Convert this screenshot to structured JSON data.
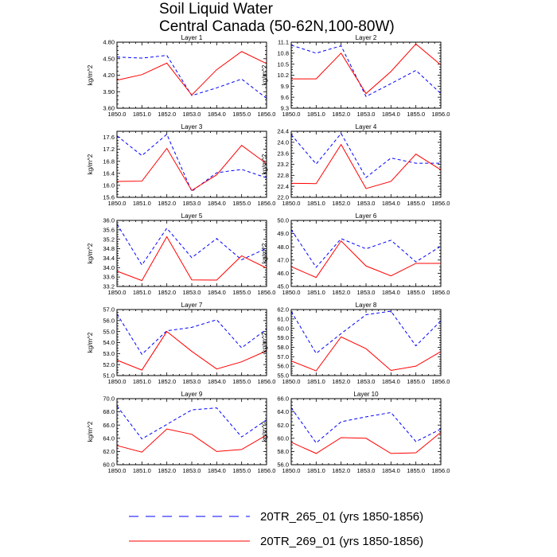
{
  "figure": {
    "title_line1": "Soil Liquid Water",
    "title_line2": "Central Canada (50-62N,100-80W)"
  },
  "chart_data": [
    {
      "type": "line",
      "title": "Layer 1",
      "xlabel": "",
      "ylabel": "kg/m^2",
      "x": [
        1850,
        1851,
        1852,
        1853,
        1854,
        1855,
        1856
      ],
      "xticklabels": [
        "1850.0",
        "1851.0",
        "1852.0",
        "1853.0",
        "1854.0",
        "1855.0",
        "1856.0"
      ],
      "ylim": [
        3.6,
        4.8
      ],
      "yticks": [
        3.6,
        3.9,
        4.2,
        4.5,
        4.8
      ],
      "yticklabels": [
        "3.60",
        "3.90",
        "4.20",
        "4.50",
        "4.80"
      ],
      "series": [
        {
          "name": "20TR_265_01 (yrs 1850-1856)",
          "color": "#0000ff",
          "style": "dashed",
          "values": [
            4.53,
            4.51,
            4.56,
            3.83,
            3.97,
            4.13,
            3.78
          ]
        },
        {
          "name": "20TR_269_01 (yrs 1850-1856)",
          "color": "#ff0000",
          "style": "solid",
          "values": [
            4.11,
            4.21,
            4.42,
            3.84,
            4.3,
            4.63,
            4.41
          ]
        }
      ]
    },
    {
      "type": "line",
      "title": "Layer 2",
      "xlabel": "",
      "ylabel": "kg/m^2",
      "x": [
        1850,
        1851,
        1852,
        1853,
        1854,
        1855,
        1856
      ],
      "xticklabels": [
        "1850.0",
        "1851.0",
        "1852.0",
        "1853.0",
        "1854.0",
        "1855.0",
        "1856.0"
      ],
      "ylim": [
        9.3,
        11.1
      ],
      "yticks": [
        9.3,
        9.6,
        9.9,
        10.2,
        10.5,
        10.8,
        11.1
      ],
      "yticklabels": [
        "9.3",
        "9.6",
        "9.9",
        "10.2",
        "10.5",
        "10.8",
        "11.1"
      ],
      "series": [
        {
          "name": "20TR_265_01 (yrs 1850-1856)",
          "color": "#0000ff",
          "style": "dashed",
          "values": [
            11.02,
            10.8,
            11.0,
            9.62,
            9.97,
            10.33,
            9.7
          ]
        },
        {
          "name": "20TR_269_01 (yrs 1850-1856)",
          "color": "#ff0000",
          "style": "solid",
          "values": [
            10.1,
            10.1,
            10.8,
            9.7,
            10.3,
            11.05,
            10.48
          ]
        }
      ]
    },
    {
      "type": "line",
      "title": "Layer 3",
      "xlabel": "",
      "ylabel": "kg/m^2",
      "x": [
        1850,
        1851,
        1852,
        1853,
        1854,
        1855,
        1856
      ],
      "xticklabels": [
        "1850.0",
        "1851.0",
        "1852.0",
        "1853.0",
        "1854.0",
        "1855.0",
        "1856.0"
      ],
      "ylim": [
        15.6,
        17.8
      ],
      "yticks": [
        15.6,
        16.0,
        16.4,
        16.8,
        17.2,
        17.6
      ],
      "yticklabels": [
        "15.6",
        "16.0",
        "16.4",
        "16.8",
        "17.2",
        "17.6"
      ],
      "series": [
        {
          "name": "20TR_265_01 (yrs 1850-1856)",
          "color": "#0000ff",
          "style": "dashed",
          "values": [
            17.65,
            16.99,
            17.7,
            15.8,
            16.42,
            16.53,
            16.25
          ]
        },
        {
          "name": "20TR_269_01 (yrs 1850-1856)",
          "color": "#ff0000",
          "style": "solid",
          "values": [
            16.13,
            16.14,
            17.23,
            15.83,
            16.35,
            17.33,
            16.72
          ]
        }
      ]
    },
    {
      "type": "line",
      "title": "Layer 4",
      "xlabel": "",
      "ylabel": "kg/m^2",
      "x": [
        1850,
        1851,
        1852,
        1853,
        1854,
        1855,
        1856
      ],
      "xticklabels": [
        "1850.0",
        "1851.0",
        "1852.0",
        "1853.0",
        "1854.0",
        "1855.0",
        "1856.0"
      ],
      "ylim": [
        22.0,
        24.4
      ],
      "yticks": [
        22.0,
        22.4,
        22.8,
        23.2,
        23.6,
        24.0,
        24.4
      ],
      "yticklabels": [
        "22.0",
        "22.4",
        "22.8",
        "23.2",
        "23.6",
        "24.0",
        "24.4"
      ],
      "series": [
        {
          "name": "20TR_265_01 (yrs 1850-1856)",
          "color": "#0000ff",
          "style": "dashed",
          "values": [
            24.28,
            23.21,
            24.32,
            22.72,
            23.43,
            23.24,
            23.24
          ]
        },
        {
          "name": "20TR_269_01 (yrs 1850-1856)",
          "color": "#ff0000",
          "style": "solid",
          "values": [
            22.51,
            22.5,
            23.92,
            22.32,
            22.58,
            23.57,
            23.0
          ]
        }
      ]
    },
    {
      "type": "line",
      "title": "Layer 5",
      "xlabel": "",
      "ylabel": "kg/m^2",
      "x": [
        1850,
        1851,
        1852,
        1853,
        1854,
        1855,
        1856
      ],
      "xticklabels": [
        "1850.0",
        "1851.0",
        "1852.0",
        "1853.0",
        "1854.0",
        "1855.0",
        "1856.0"
      ],
      "ylim": [
        33.2,
        36.0
      ],
      "yticks": [
        33.2,
        33.6,
        34.0,
        34.4,
        34.8,
        35.2,
        35.6,
        36.0
      ],
      "yticklabels": [
        "33.2",
        "33.6",
        "34.0",
        "34.4",
        "34.8",
        "35.2",
        "35.6",
        "36.0"
      ],
      "series": [
        {
          "name": "20TR_265_01 (yrs 1850-1856)",
          "color": "#0000ff",
          "style": "dashed",
          "values": [
            35.85,
            34.11,
            35.67,
            34.42,
            35.23,
            34.33,
            34.82
          ]
        },
        {
          "name": "20TR_269_01 (yrs 1850-1856)",
          "color": "#ff0000",
          "style": "solid",
          "values": [
            33.85,
            33.45,
            35.31,
            33.48,
            33.47,
            34.5,
            33.98
          ]
        }
      ]
    },
    {
      "type": "line",
      "title": "Layer 6",
      "xlabel": "",
      "ylabel": "kg/m^2",
      "x": [
        1850,
        1851,
        1852,
        1853,
        1854,
        1855,
        1856
      ],
      "xticklabels": [
        "1850.0",
        "1851.0",
        "1852.0",
        "1853.0",
        "1854.0",
        "1855.0",
        "1856.0"
      ],
      "ylim": [
        45.0,
        50.0
      ],
      "yticks": [
        45.0,
        46.0,
        47.0,
        48.0,
        49.0,
        50.0
      ],
      "yticklabels": [
        "45.0",
        "46.0",
        "47.0",
        "48.0",
        "49.0",
        "50.0"
      ],
      "series": [
        {
          "name": "20TR_265_01 (yrs 1850-1856)",
          "color": "#0000ff",
          "style": "dashed",
          "values": [
            49.3,
            46.45,
            48.62,
            47.85,
            48.5,
            46.86,
            48.05
          ]
        },
        {
          "name": "20TR_269_01 (yrs 1850-1856)",
          "color": "#ff0000",
          "style": "solid",
          "values": [
            46.5,
            45.68,
            48.45,
            46.55,
            45.8,
            46.75,
            46.75
          ]
        }
      ]
    },
    {
      "type": "line",
      "title": "Layer 7",
      "xlabel": "",
      "ylabel": "kg/m^2",
      "x": [
        1850,
        1851,
        1852,
        1853,
        1854,
        1855,
        1856
      ],
      "xticklabels": [
        "1850.0",
        "1851.0",
        "1852.0",
        "1853.0",
        "1854.0",
        "1855.0",
        "1856.0"
      ],
      "ylim": [
        51.0,
        57.0
      ],
      "yticks": [
        51.0,
        52.0,
        53.0,
        54.0,
        55.0,
        56.0,
        57.0
      ],
      "yticklabels": [
        "51.0",
        "52.0",
        "53.0",
        "54.0",
        "55.0",
        "56.0",
        "57.0"
      ],
      "series": [
        {
          "name": "20TR_265_01 (yrs 1850-1856)",
          "color": "#0000ff",
          "style": "dashed",
          "values": [
            56.6,
            52.93,
            55.07,
            55.38,
            56.07,
            53.52,
            55.22
          ]
        },
        {
          "name": "20TR_269_01 (yrs 1850-1856)",
          "color": "#ff0000",
          "style": "solid",
          "values": [
            52.4,
            51.5,
            55.0,
            53.2,
            51.6,
            52.25,
            53.25
          ]
        }
      ]
    },
    {
      "type": "line",
      "title": "Layer 8",
      "xlabel": "",
      "ylabel": "kg/m^2",
      "x": [
        1850,
        1851,
        1852,
        1853,
        1854,
        1855,
        1856
      ],
      "xticklabels": [
        "1850.0",
        "1851.0",
        "1852.0",
        "1853.0",
        "1854.0",
        "1855.0",
        "1856.0"
      ],
      "ylim": [
        55.0,
        62.0
      ],
      "yticks": [
        55.0,
        56.0,
        57.0,
        58.0,
        59.0,
        60.0,
        61.0,
        62.0
      ],
      "yticklabels": [
        "55.0",
        "56.0",
        "57.0",
        "58.0",
        "59.0",
        "60.0",
        "61.0",
        "62.0"
      ],
      "series": [
        {
          "name": "20TR_265_01 (yrs 1850-1856)",
          "color": "#0000ff",
          "style": "dashed",
          "values": [
            61.8,
            57.35,
            59.45,
            61.45,
            61.83,
            58.15,
            60.8
          ]
        },
        {
          "name": "20TR_269_01 (yrs 1850-1856)",
          "color": "#ff0000",
          "style": "solid",
          "values": [
            56.55,
            55.5,
            59.1,
            57.85,
            55.55,
            56.0,
            57.55
          ]
        }
      ]
    },
    {
      "type": "line",
      "title": "Layer 9",
      "xlabel": "",
      "ylabel": "kg/m^2",
      "x": [
        1850,
        1851,
        1852,
        1853,
        1854,
        1855,
        1856
      ],
      "xticklabels": [
        "1850.0",
        "1851.0",
        "1852.0",
        "1853.0",
        "1854.0",
        "1855.0",
        "1856.0"
      ],
      "ylim": [
        60.0,
        70.0
      ],
      "yticks": [
        60.0,
        62.0,
        64.0,
        66.0,
        68.0,
        70.0
      ],
      "yticklabels": [
        "60.0",
        "62.0",
        "64.0",
        "66.0",
        "68.0",
        "70.0"
      ],
      "series": [
        {
          "name": "20TR_265_01 (yrs 1850-1856)",
          "color": "#0000ff",
          "style": "dashed",
          "values": [
            68.9,
            63.9,
            66.1,
            68.3,
            68.6,
            64.2,
            66.8
          ]
        },
        {
          "name": "20TR_269_01 (yrs 1850-1856)",
          "color": "#ff0000",
          "style": "solid",
          "values": [
            62.9,
            61.9,
            65.4,
            64.6,
            62.0,
            62.3,
            64.5
          ]
        }
      ]
    },
    {
      "type": "line",
      "title": "Layer 10",
      "xlabel": "",
      "ylabel": "kg/m^2",
      "x": [
        1850,
        1851,
        1852,
        1853,
        1854,
        1855,
        1856
      ],
      "xticklabels": [
        "1850.0",
        "1851.0",
        "1852.0",
        "1853.0",
        "1854.0",
        "1855.0",
        "1856.0"
      ],
      "ylim": [
        56.0,
        66.0
      ],
      "yticks": [
        56.0,
        58.0,
        60.0,
        62.0,
        64.0,
        66.0
      ],
      "yticklabels": [
        "56.0",
        "58.0",
        "60.0",
        "62.0",
        "64.0",
        "66.0"
      ],
      "series": [
        {
          "name": "20TR_265_01 (yrs 1850-1856)",
          "color": "#0000ff",
          "style": "dashed",
          "values": [
            64.6,
            59.3,
            62.5,
            63.25,
            63.9,
            59.5,
            61.4
          ]
        },
        {
          "name": "20TR_269_01 (yrs 1850-1856)",
          "color": "#ff0000",
          "style": "solid",
          "values": [
            59.4,
            57.7,
            60.1,
            60.0,
            57.7,
            57.8,
            60.9
          ]
        }
      ]
    }
  ],
  "legend": {
    "items": [
      {
        "label": "20TR_265_01 (yrs 1850-1856)",
        "color": "#0000ff",
        "style": "dashed"
      },
      {
        "label": "20TR_269_01 (yrs 1850-1856)",
        "color": "#ff0000",
        "style": "solid"
      }
    ]
  }
}
